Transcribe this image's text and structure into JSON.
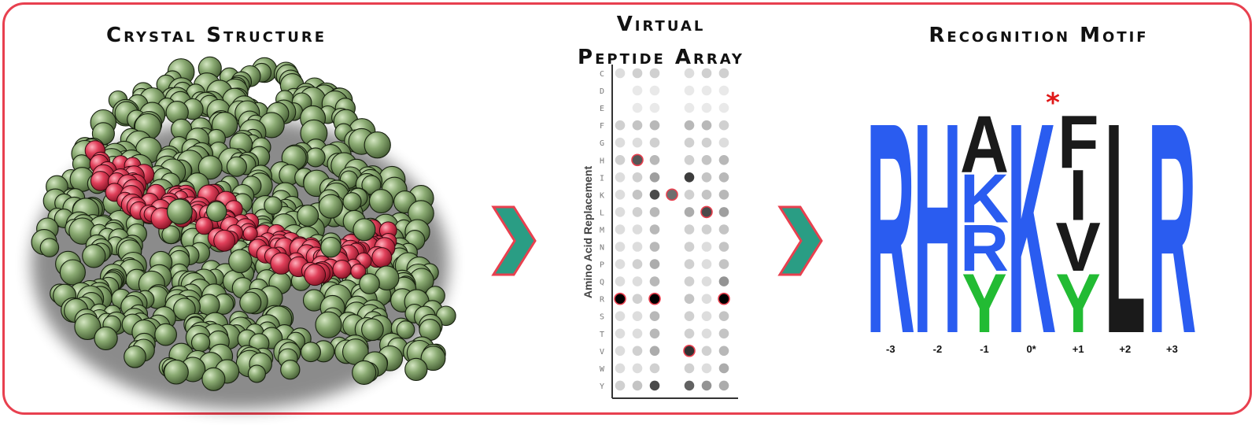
{
  "panels": {
    "crystal": {
      "title": "Crystal Structure"
    },
    "array": {
      "title_line1": "Virtual",
      "title_line2": "Peptide Array"
    },
    "motif": {
      "title": "Recognition Motif"
    }
  },
  "colors": {
    "frame": "#e8404f",
    "arrow_fill": "#2a9d84",
    "arrow_stroke": "#e8404f",
    "protein": "#8aaa72",
    "peptide": "#e0405a",
    "motif_blue": "#2a5cf0",
    "motif_black": "#1a1a1a",
    "motif_green": "#22bb33",
    "star": "#e01818"
  },
  "peptide_array": {
    "ylabel": "Amino Acid Replacement",
    "rows": [
      "C",
      "D",
      "E",
      "F",
      "G",
      "H",
      "I",
      "K",
      "L",
      "M",
      "N",
      "P",
      "Q",
      "R",
      "S",
      "T",
      "V",
      "W",
      "Y"
    ],
    "column_count": 7,
    "intensity": [
      [
        0.1,
        0.15,
        0.15,
        0,
        0.1,
        0.15,
        0.15
      ],
      [
        0,
        0.05,
        0.05,
        0,
        0.05,
        0.05,
        0.05
      ],
      [
        0,
        0.05,
        0.05,
        0,
        0.05,
        0.05,
        0.05
      ],
      [
        0.15,
        0.2,
        0.25,
        0,
        0.25,
        0.25,
        0.15
      ],
      [
        0.1,
        0.1,
        0.15,
        0,
        0.15,
        0.15,
        0.1
      ],
      [
        0.15,
        0.65,
        0.25,
        0,
        0.15,
        0.2,
        0.25
      ],
      [
        0.1,
        0.15,
        0.35,
        0,
        0.75,
        0.2,
        0.25
      ],
      [
        0.1,
        0.2,
        0.7,
        0.55,
        0.15,
        0.2,
        0.25
      ],
      [
        0.1,
        0.15,
        0.25,
        0,
        0.3,
        0.7,
        0.35
      ],
      [
        0.1,
        0.1,
        0.25,
        0,
        0.15,
        0.15,
        0.2
      ],
      [
        0.1,
        0.1,
        0.25,
        0,
        0.15,
        0.1,
        0.2
      ],
      [
        0.1,
        0.15,
        0.3,
        0,
        0.15,
        0.1,
        0.2
      ],
      [
        0.1,
        0.1,
        0.25,
        0,
        0.15,
        0.1,
        0.4
      ],
      [
        1.0,
        0.15,
        1.0,
        0,
        0.2,
        0.1,
        1.0
      ],
      [
        0.1,
        0.1,
        0.25,
        0,
        0.15,
        0.1,
        0.2
      ],
      [
        0.1,
        0.1,
        0.25,
        0,
        0.15,
        0.1,
        0.2
      ],
      [
        0.1,
        0.15,
        0.3,
        0,
        0.8,
        0.15,
        0.25
      ],
      [
        0.1,
        0.1,
        0.15,
        0,
        0.15,
        0.1,
        0.3
      ],
      [
        0.15,
        0.2,
        0.7,
        0,
        0.6,
        0.4,
        0.3
      ]
    ],
    "highlighted": [
      [
        5,
        1
      ],
      [
        7,
        3
      ],
      [
        8,
        5
      ],
      [
        13,
        0
      ],
      [
        13,
        2
      ],
      [
        13,
        6
      ],
      [
        16,
        4
      ]
    ]
  },
  "motif": {
    "positions": [
      "-3",
      "-2",
      "-1",
      "0*",
      "+1",
      "+2",
      "+3"
    ],
    "star": "*",
    "columns": [
      [
        {
          "letter": "R",
          "color": "blue",
          "weight": 1
        }
      ],
      [
        {
          "letter": "H",
          "color": "blue",
          "weight": 1
        }
      ],
      [
        {
          "letter": "A",
          "color": "black",
          "weight": 0.27
        },
        {
          "letter": "K",
          "color": "blue",
          "weight": 0.23
        },
        {
          "letter": "R",
          "color": "blue",
          "weight": 0.22
        },
        {
          "letter": "Y",
          "color": "green",
          "weight": 0.28
        }
      ],
      [
        {
          "letter": "K",
          "color": "blue",
          "weight": 1
        }
      ],
      [
        {
          "letter": "F",
          "color": "black",
          "weight": 0.25
        },
        {
          "letter": "I",
          "color": "black",
          "weight": 0.24
        },
        {
          "letter": "V",
          "color": "black",
          "weight": 0.23
        },
        {
          "letter": "Y",
          "color": "green",
          "weight": 0.28
        }
      ],
      [
        {
          "letter": "L",
          "color": "black",
          "weight": 1
        }
      ],
      [
        {
          "letter": "R",
          "color": "blue",
          "weight": 1
        }
      ]
    ]
  }
}
